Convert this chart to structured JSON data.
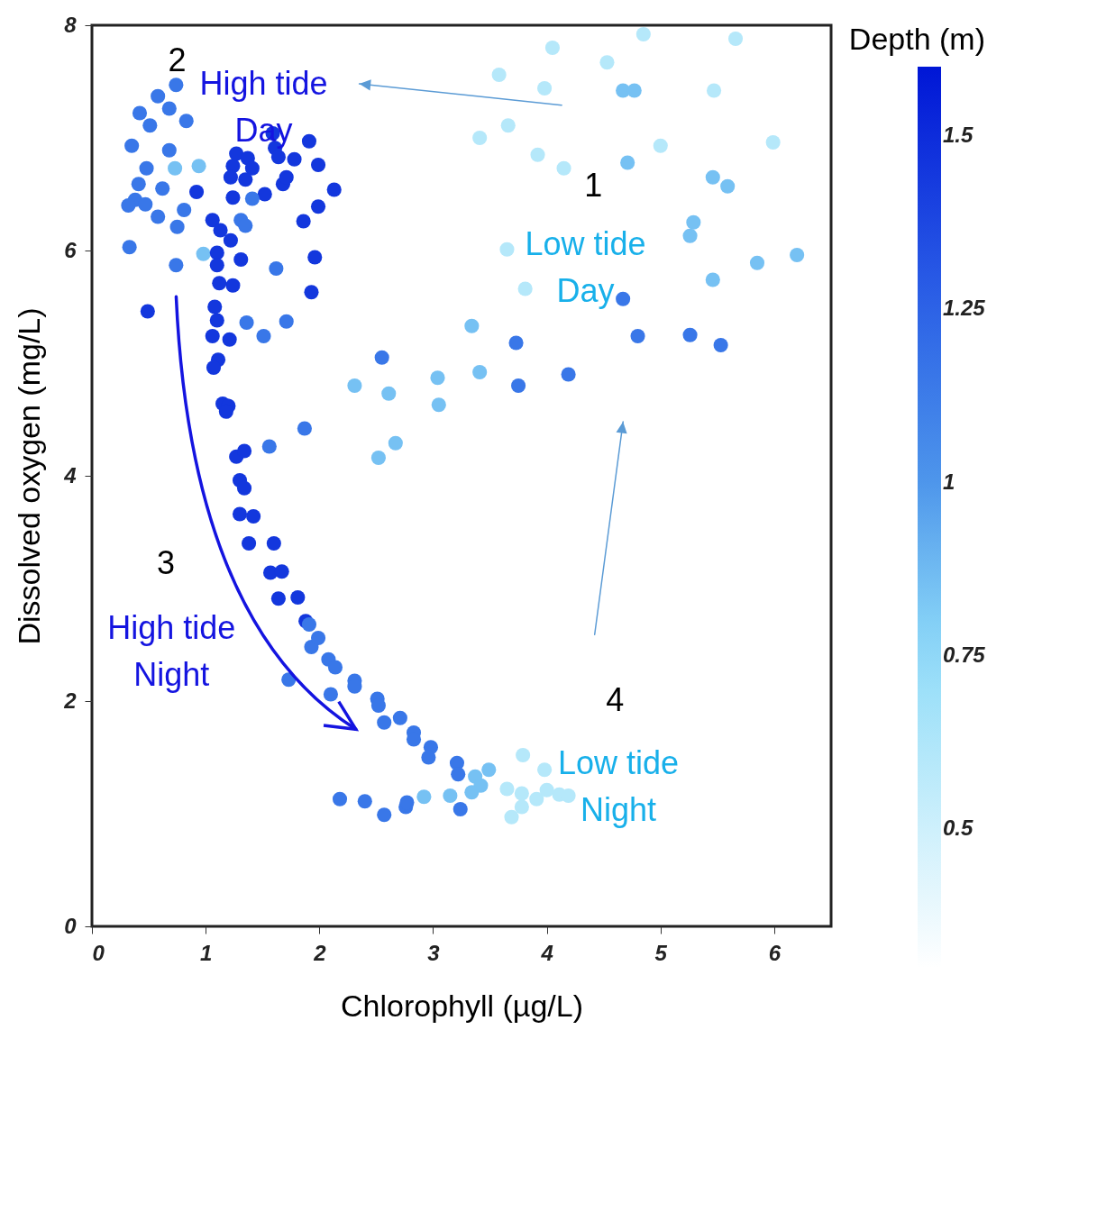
{
  "chart_data": {
    "type": "scatter",
    "xlabel": "Chlorophyll (µg/L)",
    "ylabel": "Dissolved oxygen (mg/L)",
    "clabel": "Depth (m)",
    "xlim": [
      0,
      6.5
    ],
    "ylim": [
      0,
      8
    ],
    "xticks": [
      0,
      1,
      2,
      3,
      4,
      5,
      6
    ],
    "yticks": [
      0,
      2,
      4,
      6,
      8
    ],
    "clim": [
      0.3,
      1.6
    ],
    "cticks": [
      0.5,
      0.75,
      1,
      1.25,
      1.5
    ],
    "grid": false,
    "marker": "circle",
    "x": [
      0.74,
      0.58,
      0.42,
      0.51,
      0.68,
      0.83,
      0.35,
      0.48,
      0.68,
      0.73,
      0.94,
      0.41,
      0.62,
      0.38,
      0.32,
      0.47,
      0.58,
      0.81,
      0.75,
      0.33,
      0.74,
      0.98,
      0.92,
      0.49,
      1.59,
      1.61,
      1.91,
      1.27,
      1.37,
      1.24,
      1.41,
      1.64,
      1.78,
      1.99,
      1.22,
      1.35,
      1.68,
      1.71,
      1.52,
      1.41,
      1.24,
      2.13,
      1.99,
      1.06,
      1.31,
      1.35,
      1.13,
      1.86,
      1.22,
      1.1,
      1.31,
      1.1,
      1.62,
      1.96,
      1.12,
      1.24,
      1.93,
      1.08,
      1.1,
      1.36,
      1.71,
      1.51,
      1.06,
      1.21,
      1.11,
      1.07,
      1.15,
      1.2,
      1.18,
      1.87,
      1.56,
      1.27,
      1.34,
      1.3,
      1.34,
      1.3,
      1.42,
      1.38,
      1.6,
      1.57,
      1.67,
      1.64,
      1.81,
      1.88,
      1.91,
      1.93,
      1.99,
      2.08,
      2.14,
      1.73,
      2.1,
      2.31,
      2.31,
      2.51,
      2.52,
      2.57,
      2.71,
      2.83,
      2.83,
      2.98,
      2.96,
      3.21,
      3.22,
      3.37,
      3.49,
      3.42,
      3.34,
      3.15,
      3.24,
      2.92,
      2.76,
      2.77,
      2.57,
      2.4,
      2.18,
      3.79,
      3.65,
      3.78,
      3.69,
      3.78,
      3.91,
      3.98,
      4.0,
      4.11,
      4.19,
      3.58,
      3.66,
      3.41,
      3.98,
      4.05,
      4.15,
      3.92,
      4.53,
      4.67,
      4.77,
      4.71,
      4.85,
      5.0,
      5.66,
      5.47,
      5.99,
      5.46,
      5.59,
      5.29,
      5.26,
      6.2,
      5.85,
      5.46,
      3.65,
      3.81,
      4.67,
      4.8,
      5.26,
      5.53,
      3.73,
      3.34,
      3.41,
      3.04,
      3.05,
      3.75,
      4.19,
      2.55,
      2.31,
      2.61,
      2.52,
      2.67
    ],
    "values": [
      7.47,
      7.37,
      7.22,
      7.11,
      7.26,
      7.15,
      6.93,
      6.73,
      6.89,
      6.73,
      6.75,
      6.59,
      6.55,
      6.45,
      6.4,
      6.41,
      6.3,
      6.36,
      6.21,
      6.03,
      5.87,
      5.97,
      6.52,
      5.46,
      7.04,
      6.91,
      6.97,
      6.86,
      6.82,
      6.75,
      6.73,
      6.83,
      6.81,
      6.76,
      6.65,
      6.63,
      6.59,
      6.65,
      6.5,
      6.46,
      6.47,
      6.54,
      6.39,
      6.27,
      6.27,
      6.22,
      6.18,
      6.26,
      6.09,
      5.98,
      5.92,
      5.87,
      5.84,
      5.94,
      5.71,
      5.69,
      5.63,
      5.5,
      5.38,
      5.36,
      5.37,
      5.24,
      5.24,
      5.21,
      5.03,
      4.96,
      4.64,
      4.62,
      4.57,
      4.42,
      4.26,
      4.17,
      4.22,
      3.96,
      3.89,
      3.66,
      3.64,
      3.4,
      3.4,
      3.14,
      3.15,
      2.91,
      2.92,
      2.71,
      2.68,
      2.48,
      2.56,
      2.37,
      2.3,
      2.19,
      2.06,
      2.18,
      2.13,
      2.02,
      1.96,
      1.81,
      1.85,
      1.72,
      1.66,
      1.59,
      1.5,
      1.45,
      1.35,
      1.33,
      1.39,
      1.25,
      1.19,
      1.16,
      1.04,
      1.15,
      1.06,
      1.1,
      0.99,
      1.11,
      1.13,
      1.52,
      1.22,
      1.18,
      0.97,
      1.06,
      1.13,
      1.39,
      1.21,
      1.17,
      1.16,
      7.56,
      7.11,
      7.0,
      7.44,
      7.8,
      6.73,
      6.85,
      7.67,
      7.42,
      7.42,
      6.78,
      7.92,
      6.93,
      7.88,
      7.42,
      6.96,
      6.65,
      6.57,
      6.25,
      6.13,
      5.96,
      5.89,
      5.74,
      6.01,
      5.66,
      5.57,
      5.24,
      5.25,
      5.16,
      5.18,
      5.33,
      4.92,
      4.87,
      4.63,
      4.8,
      4.9,
      5.05,
      4.8,
      4.73,
      4.16,
      4.29
    ],
    "cvalues": [
      1.15,
      1.15,
      1.15,
      1.15,
      1.15,
      1.15,
      1.15,
      1.15,
      1.15,
      0.85,
      0.85,
      1.15,
      1.15,
      1.15,
      1.15,
      1.15,
      1.15,
      1.15,
      1.15,
      1.15,
      1.15,
      0.85,
      1.45,
      1.45,
      1.45,
      1.45,
      1.45,
      1.45,
      1.45,
      1.45,
      1.45,
      1.45,
      1.45,
      1.45,
      1.45,
      1.45,
      1.45,
      1.45,
      1.45,
      1.15,
      1.45,
      1.45,
      1.45,
      1.45,
      1.15,
      1.15,
      1.45,
      1.45,
      1.45,
      1.45,
      1.45,
      1.45,
      1.15,
      1.45,
      1.45,
      1.45,
      1.45,
      1.45,
      1.45,
      1.15,
      1.15,
      1.15,
      1.45,
      1.45,
      1.45,
      1.45,
      1.45,
      1.45,
      1.45,
      1.15,
      1.15,
      1.45,
      1.45,
      1.45,
      1.45,
      1.45,
      1.45,
      1.45,
      1.45,
      1.45,
      1.45,
      1.45,
      1.45,
      1.45,
      1.15,
      1.15,
      1.15,
      1.15,
      1.15,
      1.15,
      1.15,
      1.15,
      1.15,
      1.15,
      1.15,
      1.15,
      1.15,
      1.15,
      1.15,
      1.15,
      1.15,
      1.15,
      1.15,
      0.85,
      0.85,
      0.85,
      0.85,
      0.85,
      1.15,
      0.85,
      1.15,
      1.15,
      1.15,
      1.15,
      1.15,
      0.6,
      0.6,
      0.6,
      0.6,
      0.6,
      0.6,
      0.6,
      0.6,
      0.6,
      0.6,
      0.6,
      0.6,
      0.6,
      0.6,
      0.6,
      0.6,
      0.6,
      0.6,
      0.85,
      0.85,
      0.85,
      0.6,
      0.6,
      0.6,
      0.6,
      0.6,
      0.85,
      0.85,
      0.85,
      0.85,
      0.85,
      0.85,
      0.85,
      0.6,
      0.6,
      1.15,
      1.15,
      1.15,
      1.15,
      1.15,
      0.85,
      0.85,
      0.85,
      0.85,
      1.15,
      1.15,
      1.15,
      0.85,
      0.85,
      0.85,
      0.85
    ],
    "annotations": [
      "1",
      "Low tide\nDay",
      "2",
      "High tide\nDay",
      "3",
      "High tide\nNight",
      "4",
      "Low tide\nNight"
    ]
  }
}
